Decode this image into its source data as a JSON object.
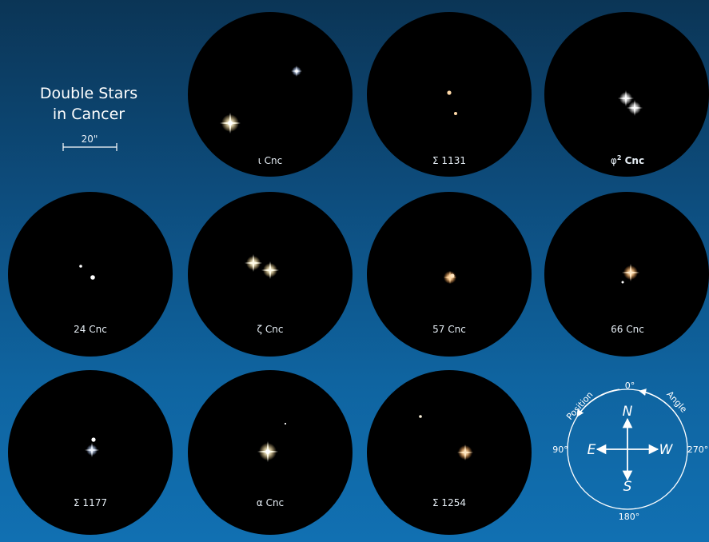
{
  "title": {
    "line1": "Double Stars",
    "line2": "in Cancer"
  },
  "scale_bar": {
    "label": "20\""
  },
  "colors": {
    "background_top": "#0b3556",
    "background_bottom": "#1170b2",
    "eyepiece": "#000000",
    "label": "#e6eef5",
    "white_star": "#ffffff",
    "yellow_star": "#fff3c8",
    "orange_star": "#ffcf8f",
    "blue_star": "#dbe9ff"
  },
  "fields": [
    {
      "id": "iota",
      "label": "ι Cnc"
    },
    {
      "id": "s1131",
      "label": "Σ 1131"
    },
    {
      "id": "phi2",
      "label": "φ",
      "label_sup": "2",
      "label_suffix": " Cnc"
    },
    {
      "id": "24cnc",
      "label": "24 Cnc"
    },
    {
      "id": "zeta",
      "label": "ζ Cnc"
    },
    {
      "id": "57cnc",
      "label": "57 Cnc"
    },
    {
      "id": "66cnc",
      "label": "66 Cnc"
    },
    {
      "id": "s1177",
      "label": "Σ 1177"
    },
    {
      "id": "alpha",
      "label": "α Cnc"
    },
    {
      "id": "s1254",
      "label": "Σ 1254"
    }
  ],
  "compass": {
    "north": "N",
    "south": "S",
    "east": "E",
    "west": "W",
    "deg0": "0°",
    "deg90": "90°",
    "deg180": "180°",
    "deg270": "270°",
    "arc_label_left": "Position",
    "arc_label_right": "Angle"
  }
}
